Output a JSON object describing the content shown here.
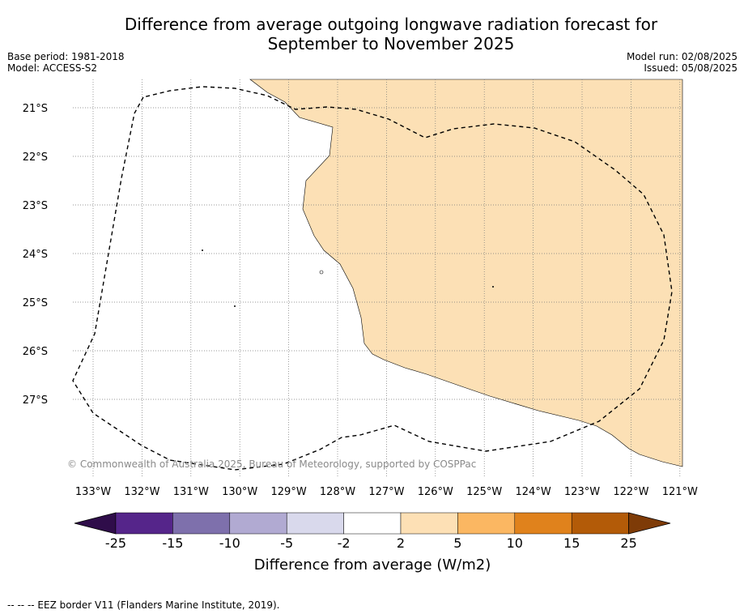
{
  "title": {
    "line1": "Difference from average outgoing longwave radiation forecast for",
    "line2": "September to November 2025"
  },
  "meta": {
    "base_period": "Base period: 1981-2018",
    "model": "Model: ACCESS-S2",
    "model_run": "Model run: 02/08/2025",
    "issued": "Issued: 05/08/2025"
  },
  "map": {
    "lat_labels": [
      "21°S",
      "22°S",
      "23°S",
      "24°S",
      "25°S",
      "26°S",
      "27°S"
    ],
    "lon_labels": [
      "133°W",
      "132°W",
      "131°W",
      "130°W",
      "129°W",
      "128°W",
      "127°W",
      "126°W",
      "125°W",
      "124°W",
      "123°W",
      "122°W",
      "121°W"
    ],
    "anomaly_fill_color": "#fce0b5",
    "anomaly_category": "2 to 5",
    "eez_border_style": "dashed"
  },
  "colorbar": {
    "ticks": [
      "-25",
      "-15",
      "-10",
      "-5",
      "-2",
      "2",
      "5",
      "10",
      "15",
      "25"
    ],
    "colors": [
      "#2f0d4a",
      "#55258a",
      "#7e70ac",
      "#b1aad2",
      "#d9d9ec",
      "#ffffff",
      "#fde0b5",
      "#fbb762",
      "#e0821c",
      "#b35b08",
      "#7e3b07"
    ],
    "label": "Difference from average (W/m2)"
  },
  "copyright": "© Commonwealth of Australia 2025, Bureau of Meteorology, supported by COSPPac",
  "footnote": "--  --  -- EEZ border V11 (Flanders Marine Institute, 2019)."
}
